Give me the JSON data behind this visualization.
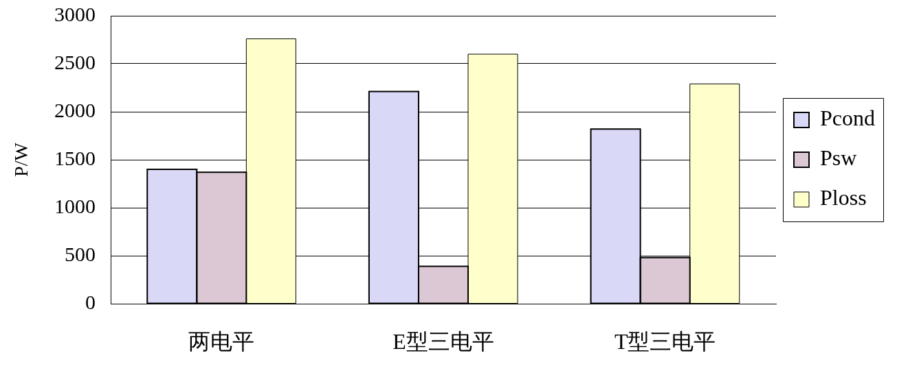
{
  "chart_data": {
    "type": "bar",
    "ylabel": "P/W",
    "categories": [
      "两电平",
      "E型三电平",
      "T型三电平"
    ],
    "series": [
      {
        "name": "Pcond",
        "color": "#d9d9f7",
        "values": [
          1400,
          2210,
          1820
        ]
      },
      {
        "name": "Psw",
        "color": "#dcc8d4",
        "values": [
          1370,
          390,
          480
        ]
      },
      {
        "name": "Ploss",
        "color": "#ffffcc",
        "values": [
          2760,
          2600,
          2290
        ]
      }
    ],
    "ylim": [
      0,
      3000
    ],
    "yticks": [
      0,
      500,
      1000,
      1500,
      2000,
      2500,
      3000
    ],
    "grid": "y",
    "legend": "right"
  }
}
